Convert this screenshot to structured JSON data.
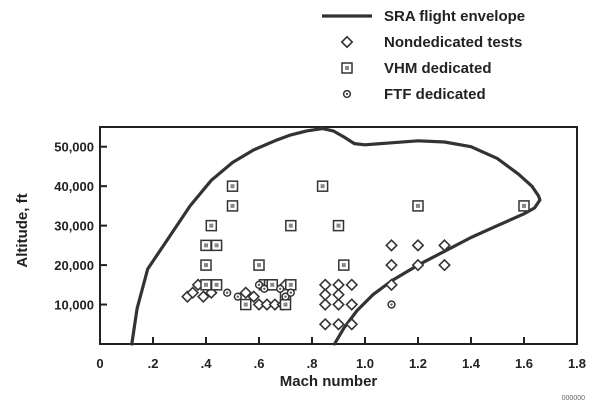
{
  "chart_data": {
    "type": "scatter",
    "xlabel": "Mach number",
    "ylabel": "Altitude, ft",
    "xlim": [
      0,
      1.8
    ],
    "ylim": [
      0,
      55000
    ],
    "x_ticks": [
      0,
      0.2,
      0.4,
      0.6,
      0.8,
      1.0,
      1.2,
      1.4,
      1.6,
      1.8
    ],
    "x_tick_labels": [
      "0",
      ".2",
      ".4",
      ".6",
      ".8",
      "1.0",
      "1.2",
      "1.4",
      "1.6",
      "1.8"
    ],
    "y_ticks": [
      10000,
      20000,
      30000,
      40000,
      50000
    ],
    "y_tick_labels": [
      "10,000",
      "20,000",
      "30,000",
      "40,000",
      "50,000"
    ],
    "grid": false,
    "legend_position": "top-right",
    "figure_id": "000000",
    "series": [
      {
        "name": "SRA flight envelope",
        "kind": "line",
        "color": "#333333",
        "x": [
          0.12,
          0.14,
          0.18,
          0.26,
          0.34,
          0.42,
          0.5,
          0.58,
          0.66,
          0.72,
          0.78,
          0.84,
          0.88,
          0.92,
          0.96,
          1.0,
          1.1,
          1.2,
          1.3,
          1.4,
          1.5,
          1.58,
          1.63,
          1.655,
          1.66,
          1.64,
          1.6,
          1.5,
          1.4,
          1.3,
          1.2,
          1.1,
          1.03,
          0.97,
          0.92,
          0.885
        ],
        "y": [
          0,
          9000,
          19000,
          27000,
          35000,
          41500,
          46000,
          49200,
          51500,
          53000,
          54000,
          54600,
          54000,
          52500,
          50800,
          50500,
          51000,
          51500,
          51200,
          50000,
          47000,
          43000,
          40000,
          37500,
          36500,
          34500,
          33000,
          30000,
          27000,
          23500,
          20000,
          16000,
          12500,
          8500,
          4000,
          0
        ]
      },
      {
        "name": "Nondedicated tests",
        "kind": "diamond",
        "x": [
          0.33,
          0.35,
          0.37,
          0.39,
          0.42,
          0.55,
          0.58,
          0.6,
          0.63,
          0.66,
          0.69,
          0.7,
          0.7,
          0.85,
          0.85,
          0.85,
          0.9,
          0.9,
          0.9,
          0.95,
          0.95,
          0.95,
          0.85,
          0.9,
          1.1,
          1.1,
          1.1,
          1.2,
          1.2,
          1.3,
          1.3
        ],
        "y": [
          12000,
          13000,
          15000,
          12000,
          13000,
          13000,
          12000,
          10000,
          10000,
          10000,
          10000,
          13000,
          15000,
          15000,
          10000,
          5000,
          15000,
          10000,
          5000,
          15000,
          10000,
          5000,
          12500,
          12500,
          25000,
          20000,
          15000,
          25000,
          20000,
          25000,
          20000
        ]
      },
      {
        "name": "VHM dedicated",
        "kind": "square",
        "x": [
          0.4,
          0.4,
          0.42,
          0.44,
          0.4,
          0.44,
          0.5,
          0.5,
          0.6,
          0.55,
          0.62,
          0.64,
          0.7,
          0.72,
          0.72,
          0.84,
          0.9,
          0.92,
          1.2,
          1.6,
          0.65,
          0.7
        ],
        "y": [
          20000,
          25000,
          30000,
          25000,
          15000,
          15000,
          35000,
          40000,
          20000,
          10000,
          15000,
          15000,
          10000,
          15000,
          30000,
          40000,
          30000,
          20000,
          35000,
          35000,
          15000,
          12500
        ]
      },
      {
        "name": "FTF dedicated",
        "kind": "circle",
        "x": [
          0.48,
          0.52,
          0.6,
          0.62,
          0.68,
          0.7,
          0.72,
          1.1
        ],
        "y": [
          13000,
          12000,
          15000,
          14000,
          14000,
          12000,
          13000,
          10000
        ]
      }
    ]
  }
}
